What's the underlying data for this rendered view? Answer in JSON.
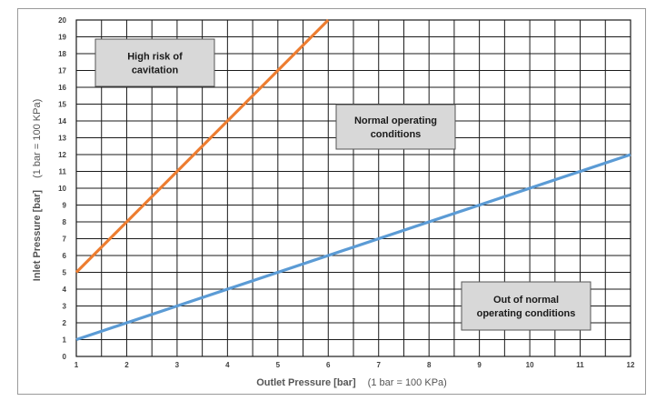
{
  "chart_data": {
    "type": "line",
    "title": "",
    "xlabel": "Outlet Pressure [bar]",
    "xlabel_note": "(1 bar = 100 KPa)",
    "ylabel": "Inlet Pressure [bar]",
    "ylabel_note": "(1 bar = 100 KPa)",
    "xlim": [
      1,
      12
    ],
    "ylim": [
      0,
      20
    ],
    "x_ticks": [
      1,
      2,
      3,
      4,
      5,
      6,
      7,
      8,
      9,
      10,
      11,
      12
    ],
    "y_ticks": [
      0,
      1,
      2,
      3,
      4,
      5,
      6,
      7,
      8,
      9,
      10,
      11,
      12,
      13,
      14,
      15,
      16,
      17,
      18,
      19,
      20
    ],
    "grid": true,
    "legend": "none",
    "series": [
      {
        "color": "#ed7d31",
        "x": [
          1,
          6
        ],
        "y": [
          5,
          20
        ]
      },
      {
        "color": "#5b9bd5",
        "x": [
          1,
          12
        ],
        "y": [
          1,
          12
        ]
      }
    ],
    "annotations": [
      {
        "lines": [
          "High risk of",
          "cavitation"
        ]
      },
      {
        "lines": [
          "Normal operating",
          "conditions"
        ]
      },
      {
        "lines": [
          "Out of normal",
          "operating conditions"
        ]
      }
    ]
  }
}
